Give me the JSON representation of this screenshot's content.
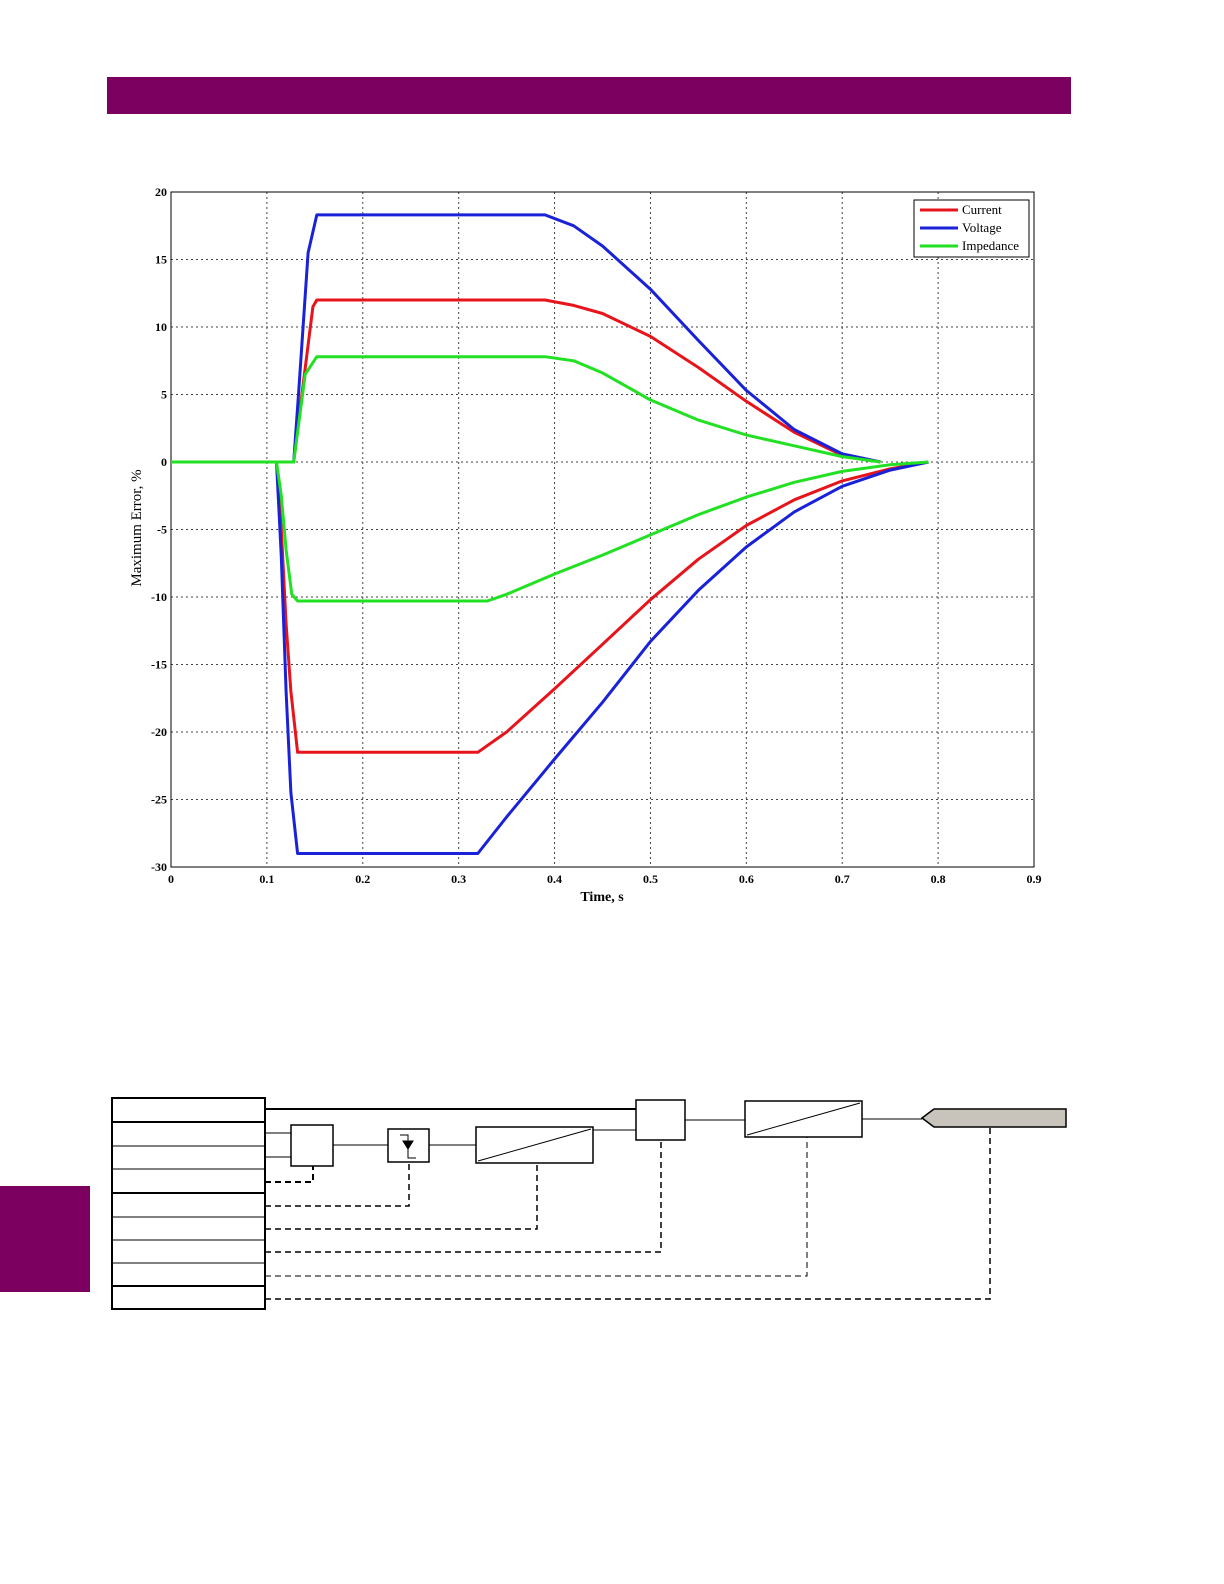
{
  "colors": {
    "accent": "#7b0060",
    "current": "#e8141c",
    "voltage": "#1a22d8",
    "impedance": "#22e022"
  },
  "chart_data": {
    "type": "line",
    "xlabel": "Time, s",
    "ylabel": "Maximum Error, %",
    "xlim": [
      0,
      0.9
    ],
    "ylim": [
      -30,
      20
    ],
    "xticks": [
      "0",
      "0.1",
      "0.2",
      "0.3",
      "0.4",
      "0.5",
      "0.6",
      "0.7",
      "0.8",
      "0.9"
    ],
    "yticks": [
      "20",
      "15",
      "10",
      "5",
      "0",
      "-5",
      "-10",
      "-15",
      "-20",
      "-25",
      "-30"
    ],
    "grid": true,
    "legend_position": "top-right",
    "series": [
      {
        "name": "Current",
        "color": "#e8141c",
        "part": "upper",
        "x": [
          0,
          0.11,
          0.128,
          0.133,
          0.148,
          0.152,
          0.2,
          0.3,
          0.39,
          0.42,
          0.45,
          0.5,
          0.55,
          0.6,
          0.65,
          0.7,
          0.74
        ],
        "y": [
          0,
          0,
          0,
          3,
          11.5,
          12,
          12,
          12,
          12,
          11.6,
          11,
          9.3,
          7,
          4.5,
          2.2,
          0.5,
          0
        ]
      },
      {
        "name": "Current",
        "color": "#e8141c",
        "part": "lower",
        "x": [
          0,
          0.11,
          0.115,
          0.12,
          0.125,
          0.132,
          0.2,
          0.32,
          0.35,
          0.4,
          0.45,
          0.5,
          0.55,
          0.6,
          0.65,
          0.7,
          0.75,
          0.79
        ],
        "y": [
          0,
          0,
          -5,
          -12,
          -17,
          -21.5,
          -21.5,
          -21.5,
          -20,
          -16.8,
          -13.5,
          -10.2,
          -7.2,
          -4.7,
          -2.8,
          -1.4,
          -0.5,
          0
        ]
      },
      {
        "name": "Voltage",
        "color": "#1a22d8",
        "part": "upper",
        "x": [
          0,
          0.11,
          0.128,
          0.133,
          0.143,
          0.152,
          0.2,
          0.3,
          0.39,
          0.42,
          0.45,
          0.5,
          0.55,
          0.6,
          0.65,
          0.7,
          0.74
        ],
        "y": [
          0,
          0,
          0,
          5,
          15.5,
          18.3,
          18.3,
          18.3,
          18.3,
          17.5,
          16,
          12.8,
          9,
          5.3,
          2.4,
          0.6,
          0
        ]
      },
      {
        "name": "Voltage",
        "color": "#1a22d8",
        "part": "lower",
        "x": [
          0,
          0.11,
          0.115,
          0.12,
          0.125,
          0.132,
          0.2,
          0.32,
          0.35,
          0.4,
          0.45,
          0.5,
          0.55,
          0.6,
          0.65,
          0.7,
          0.75,
          0.79
        ],
        "y": [
          0,
          0,
          -7,
          -17,
          -24.5,
          -29,
          -29,
          -29,
          -26.3,
          -22,
          -17.8,
          -13.3,
          -9.5,
          -6.3,
          -3.7,
          -1.8,
          -0.6,
          0
        ]
      },
      {
        "name": "Impedance",
        "color": "#22e022",
        "part": "upper",
        "x": [
          0,
          0.11,
          0.128,
          0.14,
          0.152,
          0.2,
          0.3,
          0.39,
          0.42,
          0.45,
          0.5,
          0.55,
          0.6,
          0.65,
          0.7,
          0.74
        ],
        "y": [
          0,
          0,
          0,
          6.5,
          7.8,
          7.8,
          7.8,
          7.8,
          7.5,
          6.6,
          4.6,
          3.1,
          2.0,
          1.2,
          0.4,
          0
        ]
      },
      {
        "name": "Impedance",
        "color": "#22e022",
        "part": "lower",
        "x": [
          0,
          0.11,
          0.115,
          0.12,
          0.126,
          0.132,
          0.2,
          0.33,
          0.35,
          0.4,
          0.45,
          0.5,
          0.55,
          0.6,
          0.65,
          0.7,
          0.75,
          0.79
        ],
        "y": [
          0,
          0,
          -2.5,
          -6.5,
          -9.8,
          -10.3,
          -10.3,
          -10.3,
          -9.8,
          -8.3,
          -6.9,
          -5.4,
          -3.9,
          -2.6,
          -1.5,
          -0.7,
          -0.2,
          0
        ]
      }
    ]
  }
}
